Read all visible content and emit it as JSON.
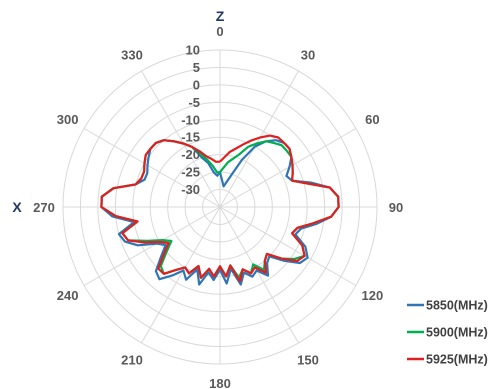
{
  "chart_data": {
    "type": "polar-line",
    "axis_names": {
      "top": "Z",
      "left": "X"
    },
    "angle_ticks": [
      "0",
      "30",
      "60",
      "90",
      "120",
      "150",
      "180",
      "210",
      "240",
      "270",
      "300",
      "330"
    ],
    "angle_tick_values": [
      0,
      30,
      60,
      90,
      120,
      150,
      180,
      210,
      240,
      270,
      300,
      330
    ],
    "radial_ticks": [
      "10",
      "5",
      "0",
      "-5",
      "-10",
      "-15",
      "-20",
      "-25",
      "-30"
    ],
    "radial_tick_values": [
      10,
      5,
      0,
      -5,
      -10,
      -15,
      -20,
      -25,
      -30
    ],
    "rlim": [
      -35,
      10
    ],
    "grid": true,
    "legend_position": "bottom-right",
    "series": [
      {
        "name": "5850(MHz)",
        "color": "#2e75b6",
        "angles": [
          0,
          10,
          20,
          25,
          30,
          35,
          40,
          45,
          50,
          55,
          60,
          65,
          70,
          75,
          80,
          85,
          90,
          95,
          100,
          105,
          110,
          115,
          120,
          125,
          130,
          135,
          140,
          145,
          150,
          155,
          160,
          165,
          170,
          175,
          180,
          185,
          190,
          195,
          200,
          205,
          210,
          215,
          220,
          225,
          230,
          235,
          240,
          245,
          250,
          255,
          260,
          265,
          270,
          275,
          280,
          285,
          290,
          295,
          300,
          305,
          310,
          315,
          320,
          325,
          330,
          335,
          340,
          345,
          350,
          355,
          360
        ],
        "values": [
          -25,
          -29,
          -25,
          -20,
          -15,
          -12,
          -10,
          -9,
          -9,
          -10,
          -12,
          -14,
          -13,
          -8,
          -3,
          -1,
          -1,
          -3,
          -7,
          -11,
          -12,
          -8,
          -6,
          -7,
          -11,
          -15,
          -14,
          -11,
          -14,
          -13,
          -15,
          -12,
          -17,
          -13,
          -17,
          -14,
          -16,
          -12,
          -16,
          -12,
          -14,
          -11,
          -8,
          -9,
          -13,
          -16,
          -14,
          -9,
          -6,
          -5,
          -10,
          -4,
          -1,
          -1,
          -4,
          -10,
          -12,
          -12,
          -11,
          -10,
          -9,
          -9,
          -10,
          -12,
          -14,
          -16,
          -20,
          -22,
          -25,
          -26,
          -25
        ]
      },
      {
        "name": "5900(MHz)",
        "color": "#00b050",
        "angles": [
          0,
          10,
          20,
          25,
          30,
          35,
          40,
          45,
          50,
          55,
          60,
          65,
          70,
          75,
          80,
          85,
          90,
          95,
          100,
          105,
          110,
          115,
          120,
          125,
          130,
          135,
          140,
          145,
          150,
          155,
          160,
          165,
          170,
          175,
          180,
          185,
          190,
          195,
          200,
          205,
          210,
          215,
          220,
          225,
          230,
          235,
          240,
          245,
          250,
          255,
          260,
          265,
          270,
          275,
          280,
          285,
          290,
          295,
          300,
          305,
          310,
          315,
          320,
          325,
          330,
          335,
          340,
          345,
          350,
          355,
          360
        ],
        "values": [
          -25,
          -22,
          -19,
          -16,
          -14,
          -12,
          -11,
          -10,
          -10,
          -10,
          -11,
          -12,
          -13,
          -9,
          -3,
          -1,
          -1,
          -3,
          -8,
          -12,
          -13,
          -9,
          -7,
          -9,
          -12,
          -16,
          -15,
          -13,
          -16,
          -14,
          -16,
          -14,
          -18,
          -15,
          -18,
          -15,
          -17,
          -14,
          -17,
          -14,
          -15,
          -13,
          -10,
          -11,
          -15,
          -18,
          -16,
          -12,
          -7,
          -6,
          -11,
          -5,
          -1,
          -1,
          -4,
          -10,
          -11,
          -11,
          -10,
          -9,
          -9,
          -9,
          -10,
          -12,
          -14,
          -16,
          -19,
          -21,
          -23,
          -25,
          -25
        ]
      },
      {
        "name": "5925(MHz)",
        "color": "#e02020",
        "angles": [
          0,
          10,
          20,
          25,
          30,
          35,
          40,
          45,
          50,
          55,
          60,
          65,
          70,
          75,
          80,
          85,
          90,
          95,
          100,
          105,
          110,
          115,
          120,
          125,
          130,
          135,
          140,
          145,
          150,
          155,
          160,
          165,
          170,
          175,
          180,
          185,
          190,
          195,
          200,
          205,
          210,
          215,
          220,
          225,
          230,
          235,
          240,
          245,
          250,
          255,
          260,
          265,
          270,
          275,
          280,
          285,
          290,
          295,
          300,
          305,
          310,
          315,
          320,
          325,
          330,
          335,
          340,
          345,
          350,
          355,
          360
        ],
        "values": [
          -22,
          -19,
          -16,
          -14,
          -12,
          -10,
          -9,
          -9,
          -9,
          -10,
          -11,
          -12,
          -13,
          -9,
          -3,
          -1,
          -1,
          -3,
          -8,
          -12,
          -13,
          -9,
          -7,
          -8,
          -12,
          -16,
          -15,
          -12,
          -15,
          -14,
          -16,
          -13,
          -18,
          -15,
          -18,
          -15,
          -17,
          -14,
          -17,
          -14,
          -15,
          -13,
          -10,
          -10,
          -14,
          -17,
          -15,
          -11,
          -7,
          -6,
          -11,
          -5,
          -1,
          -1,
          -4,
          -10,
          -11,
          -11,
          -10,
          -9,
          -9,
          -9,
          -10,
          -12,
          -14,
          -16,
          -18,
          -20,
          -21,
          -22,
          -22
        ]
      }
    ]
  }
}
